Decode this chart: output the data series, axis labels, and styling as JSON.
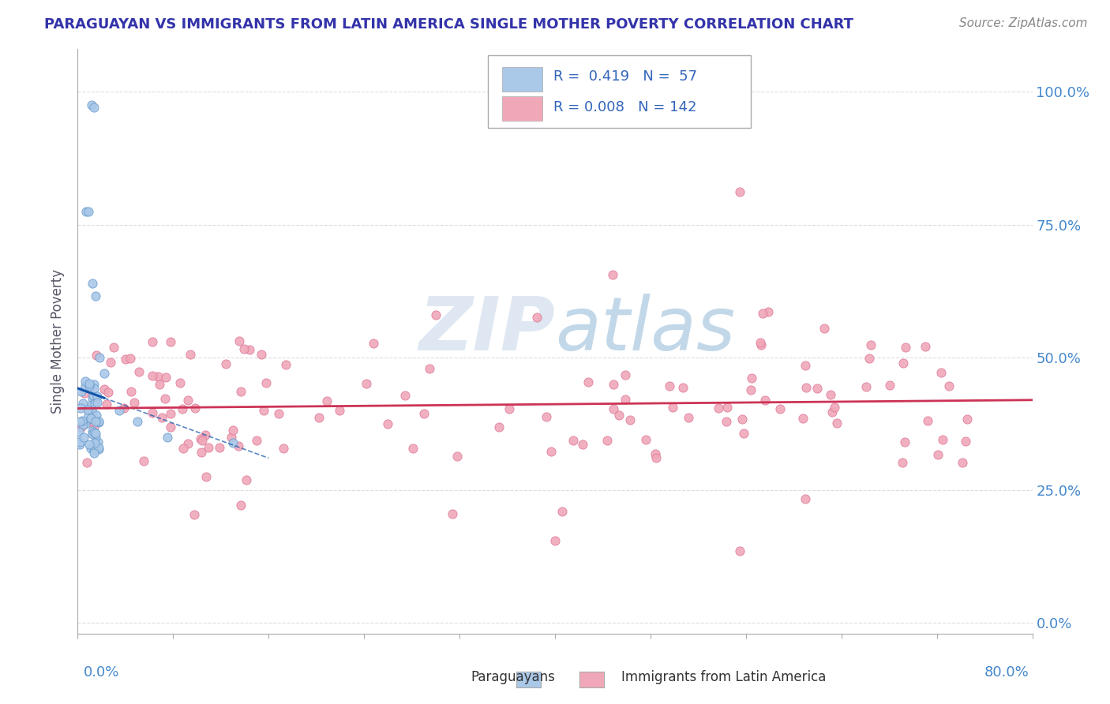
{
  "title": "PARAGUAYAN VS IMMIGRANTS FROM LATIN AMERICA SINGLE MOTHER POVERTY CORRELATION CHART",
  "source": "Source: ZipAtlas.com",
  "ylabel": "Single Mother Poverty",
  "yticks": [
    "0.0%",
    "25.0%",
    "50.0%",
    "75.0%",
    "100.0%"
  ],
  "ytick_vals": [
    0.0,
    0.25,
    0.5,
    0.75,
    1.0
  ],
  "xlim": [
    0.0,
    0.8
  ],
  "ylim": [
    -0.02,
    1.08
  ],
  "color_paraguayan_fill": "#aac8e8",
  "color_paraguayan_edge": "#6699cc",
  "color_immigrant_fill": "#f0a8b8",
  "color_immigrant_edge": "#dd7799",
  "color_line_paraguayan": "#1155aa",
  "color_line_immigrant": "#cc3355",
  "color_title": "#3333aa",
  "color_grid": "#dddddd",
  "color_axis": "#aaaaaa",
  "color_tick_label": "#4488cc",
  "watermark_color": "#c8d8ee",
  "background": "#ffffff",
  "legend_text_color": "#3366bb"
}
